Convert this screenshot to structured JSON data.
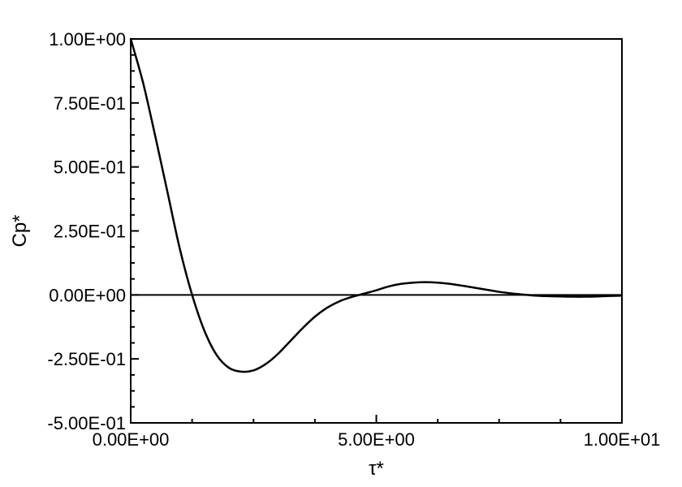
{
  "chart_data": {
    "type": "line",
    "title": "",
    "xlabel": "τ*",
    "ylabel": "Cp*",
    "xlim": [
      0,
      10
    ],
    "ylim": [
      -0.5,
      1.0
    ],
    "grid": false,
    "x_ticks": [
      {
        "value": 0,
        "label": "0.00E+00"
      },
      {
        "value": 5,
        "label": "5.00E+00"
      },
      {
        "value": 10,
        "label": "1.00E+01"
      }
    ],
    "y_ticks": [
      {
        "value": 1.0,
        "label": "1.00E+00"
      },
      {
        "value": 0.75,
        "label": "7.50E-01"
      },
      {
        "value": 0.5,
        "label": "5.00E-01"
      },
      {
        "value": 0.25,
        "label": "2.50E-01"
      },
      {
        "value": 0.0,
        "label": "0.00E+00"
      },
      {
        "value": -0.25,
        "label": "-2.50E-01"
      },
      {
        "value": -0.5,
        "label": "-5.00E-01"
      }
    ],
    "reference_lines": [
      {
        "axis": "y",
        "value": 0
      }
    ],
    "series": [
      {
        "color": "#000000",
        "x": [
          0,
          0.25,
          0.5,
          0.75,
          1.0,
          1.25,
          1.5,
          1.75,
          2.0,
          2.25,
          2.5,
          2.75,
          3.0,
          3.25,
          3.5,
          3.75,
          4.0,
          4.25,
          4.5,
          4.75,
          5.0,
          5.25,
          5.5,
          5.75,
          6.0,
          6.25,
          6.5,
          6.75,
          7.0,
          7.25,
          7.5,
          7.75,
          8.0,
          8.25,
          8.5,
          8.75,
          9.0,
          9.25,
          9.5,
          9.75,
          10.0
        ],
        "y": [
          1.0,
          0.83,
          0.62,
          0.4,
          0.18,
          0.0,
          -0.14,
          -0.235,
          -0.285,
          -0.3,
          -0.295,
          -0.27,
          -0.23,
          -0.18,
          -0.13,
          -0.085,
          -0.05,
          -0.025,
          -0.008,
          0.005,
          0.018,
          0.033,
          0.043,
          0.048,
          0.05,
          0.048,
          0.043,
          0.036,
          0.028,
          0.02,
          0.012,
          0.006,
          0.001,
          -0.003,
          -0.005,
          -0.006,
          -0.007,
          -0.007,
          -0.006,
          -0.004,
          -0.003
        ]
      }
    ]
  }
}
